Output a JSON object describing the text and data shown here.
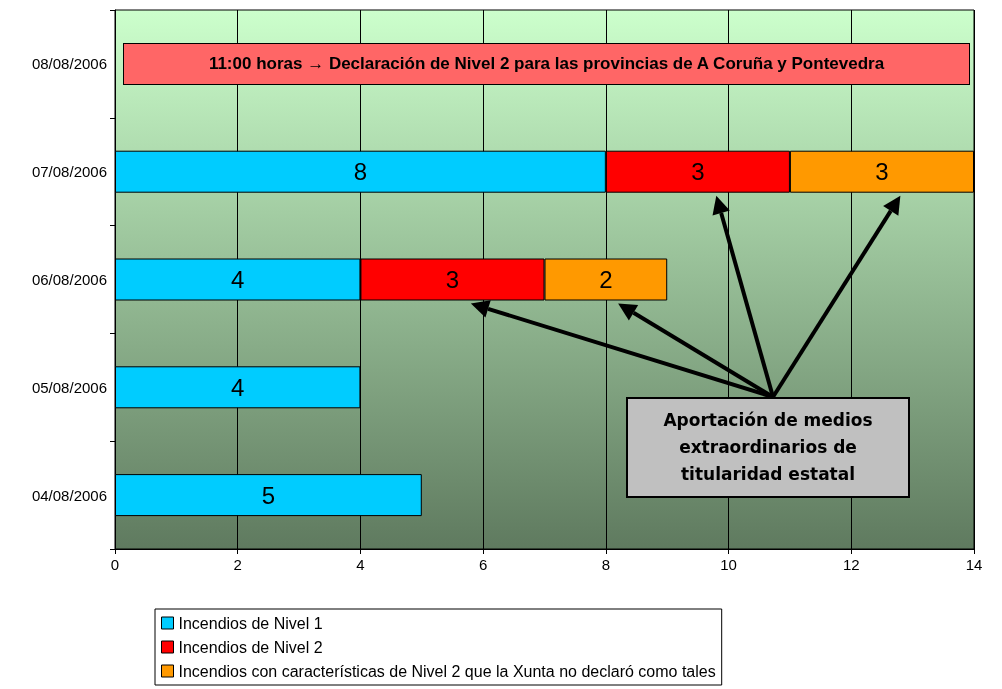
{
  "chart_data": {
    "type": "bar",
    "orientation": "horizontal",
    "stacked": true,
    "categories": [
      "08/08/2006",
      "07/08/2006",
      "06/08/2006",
      "05/08/2006",
      "04/08/2006"
    ],
    "series": [
      {
        "name": "Incendios de Nivel 1",
        "color": "#00ccff",
        "values": [
          null,
          8,
          4,
          4,
          5
        ]
      },
      {
        "name": "Incendios de Nivel 2",
        "color": "#ff0000",
        "values": [
          null,
          3,
          3,
          null,
          null
        ]
      },
      {
        "name": "Incendios con características de Nivel 2 que la Xunta no declaró como tales",
        "color": "#ff9900",
        "values": [
          null,
          3,
          2,
          null,
          null
        ]
      }
    ],
    "xlim": [
      0,
      14
    ],
    "xticks": [
      0,
      2,
      4,
      6,
      8,
      10,
      12,
      14
    ],
    "grid": "x",
    "legend": "bottom",
    "data_labels": true,
    "annotations": [
      "11:00 horas → Declaración de Nivel 2 para las provincias de A Coruña y Pontevedra",
      "Aportación de medios extraordinarios de titularidad estatal"
    ]
  }
}
